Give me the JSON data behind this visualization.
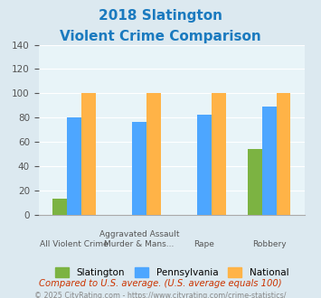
{
  "title_line1": "2018 Slatington",
  "title_line2": "Violent Crime Comparison",
  "categories": [
    "All Violent Crime",
    "Aggravated Assault\nMurder & Mans...",
    "Rape",
    "Robbery"
  ],
  "cat_labels_top": [
    "",
    "Aggravated Assault",
    "",
    ""
  ],
  "cat_labels_bot": [
    "All Violent Crime",
    "Murder & Mans...",
    "Rape",
    "Robbery"
  ],
  "slatington": [
    13,
    0,
    0,
    54
  ],
  "pennsylvania": [
    80,
    76,
    82,
    89
  ],
  "national": [
    100,
    100,
    100,
    100
  ],
  "bar_color_slatington": "#7cb342",
  "bar_color_pennsylvania": "#4da6ff",
  "bar_color_national": "#ffb347",
  "ylim": [
    0,
    140
  ],
  "yticks": [
    0,
    20,
    40,
    60,
    80,
    100,
    120,
    140
  ],
  "legend_labels": [
    "Slatington",
    "Pennsylvania",
    "National"
  ],
  "footnote1": "Compared to U.S. average. (U.S. average equals 100)",
  "footnote2": "© 2025 CityRating.com - https://www.cityrating.com/crime-statistics/",
  "title_color": "#1a7abf",
  "footnote1_color": "#cc3300",
  "footnote2_color": "#888888",
  "bg_color": "#dce9f0",
  "plot_bg_color": "#e8f4f8"
}
